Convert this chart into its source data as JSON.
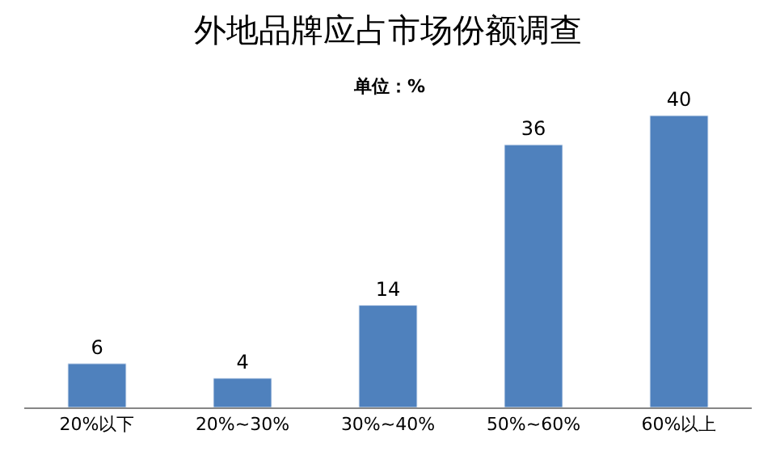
{
  "chart_data": {
    "type": "bar",
    "title": "外地品牌应占市场份额调查",
    "subtitle": "单位：%",
    "categories": [
      "20%以下",
      "20%~30%",
      "30%~40%",
      "50%~60%",
      "60%以上"
    ],
    "values": [
      6,
      4,
      14,
      36,
      40
    ],
    "color": "#4f81bd",
    "data_labels": true
  }
}
